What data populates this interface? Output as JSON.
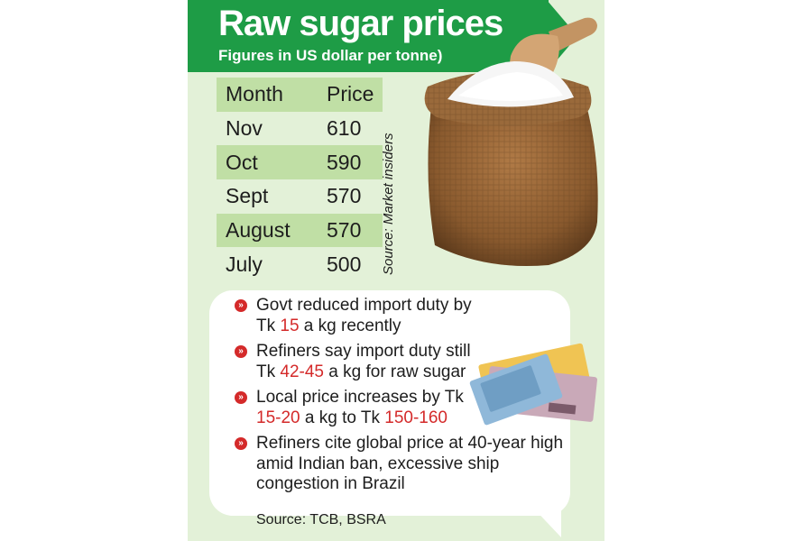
{
  "header": {
    "title": "Raw sugar prices",
    "subtitle": "Figures in US dollar per tonne)"
  },
  "table": {
    "columns": [
      "Month",
      "Price"
    ],
    "rows": [
      {
        "month": "Nov",
        "price": "610"
      },
      {
        "month": "Oct",
        "price": "590"
      },
      {
        "month": "Sept",
        "price": "570"
      },
      {
        "month": "August",
        "price": "570"
      },
      {
        "month": "July",
        "price": "500"
      }
    ]
  },
  "table_source": "Source: Market insiders",
  "bullets": [
    {
      "pre": "Govt reduced import duty by Tk ",
      "hl": "15",
      "post": " a kg recently"
    },
    {
      "pre": "Refiners say import duty still Tk ",
      "hl": "42-45",
      "post": " a kg for raw sugar"
    },
    {
      "pre": "Local price increases by Tk ",
      "hl": "15-20",
      "mid": " a kg to Tk ",
      "hl2": "150-160",
      "post": ""
    },
    {
      "pre": "Refiners cite global price at 40-year high amid Indian ban, excessive ship congestion in Brazil",
      "hl": "",
      "post": ""
    }
  ],
  "bullet_marker": "»",
  "footer_source": "Source: TCB, BSRA",
  "images": {
    "sugar_sack": "sugar-sack-with-scoop",
    "banknotes": "banknotes"
  },
  "colors": {
    "header_green": "#1e9c46",
    "panel_green": "#e3f1d8",
    "row_green": "#c0dfa5",
    "highlight_red": "#d42a2a"
  }
}
